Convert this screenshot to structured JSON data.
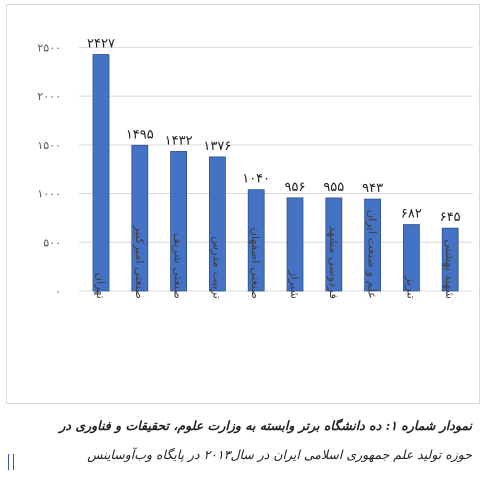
{
  "chart_data": {
    "type": "bar",
    "categories": [
      "تهران",
      "صنعتی امیرکبیر",
      "صنعتی شریف",
      "تربیت مدرس",
      "صنعتی اصفهان",
      "شیراز",
      "فردوسی مشهد",
      "علم و صنعت ایران",
      "تبریز",
      "شهید بهشتی"
    ],
    "values": [
      2427,
      1495,
      1432,
      1376,
      1040,
      956,
      955,
      943,
      682,
      645
    ],
    "value_labels": [
      "۲۴۲۷",
      "۱۴۹۵",
      "۱۴۳۲",
      "۱۳۷۶",
      "۱۰۴۰",
      "۹۵۶",
      "۹۵۵",
      "۹۴۳",
      "۶۸۲",
      "۶۴۵"
    ],
    "yticks": [
      0,
      500,
      1000,
      1500,
      2000,
      2500
    ],
    "ytick_labels": [
      "۰",
      "۵۰۰",
      "۱۰۰۰",
      "۱۵۰۰",
      "۲۰۰۰",
      "۲۵۰۰"
    ],
    "ylim": [
      0,
      2750
    ],
    "grid": true,
    "title": "",
    "xlabel": "",
    "ylabel": "",
    "colors": {
      "bar": "#4472c4",
      "bar_edge": "#2f528f",
      "grid": "#d9d9d9"
    }
  },
  "caption": {
    "line1": "نمودار شماره ۱: ده دانشگاه برتر وابسته به وزارت علوم، تحقیقات و فناوری در",
    "line2": "حوزه تولید علم جمهوری اسلامی ایران در سال۲۰۱۳ در پایگاه وب‌آوساینس"
  }
}
